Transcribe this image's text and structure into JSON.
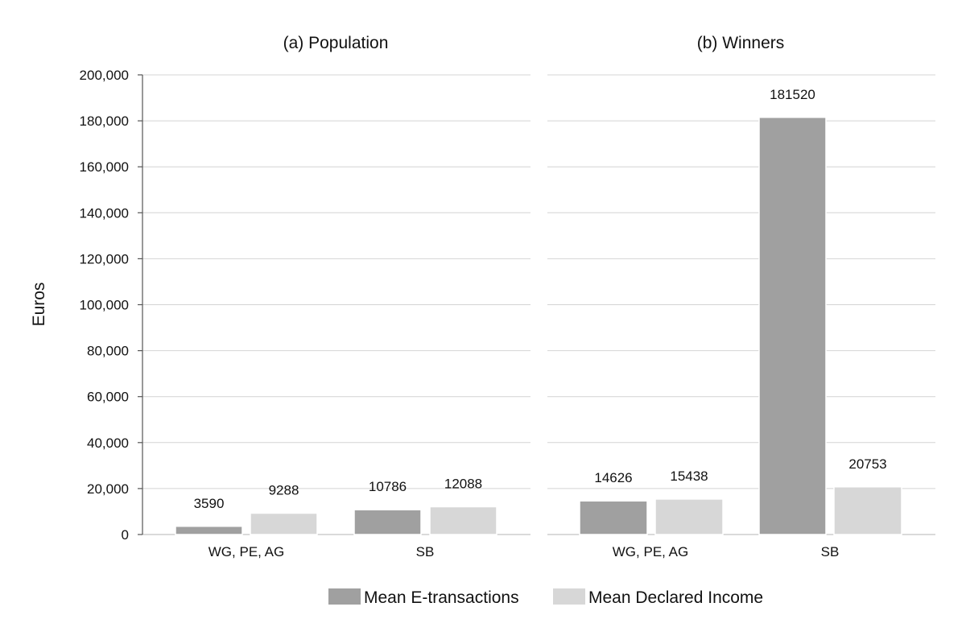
{
  "chart_data": {
    "type": "bar",
    "ylabel": "Euros",
    "ylim": [
      0,
      200000
    ],
    "yticks": [
      0,
      20000,
      40000,
      60000,
      80000,
      100000,
      120000,
      140000,
      160000,
      180000,
      200000
    ],
    "ytick_labels": [
      "0",
      "20,000",
      "40,000",
      "60,000",
      "80,000",
      "100,000",
      "120,000",
      "140,000",
      "160,000",
      "180,000",
      "200,000"
    ],
    "grid": true,
    "legend_position": "bottom",
    "series_info": [
      {
        "name": "Mean E-transactions",
        "color": "#a0a0a0"
      },
      {
        "name": "Mean Declared Income",
        "color": "#d7d7d7"
      }
    ],
    "panels": [
      {
        "title": "(a) Population",
        "categories": [
          "WG, PE, AG",
          "SB"
        ],
        "series": [
          {
            "name": "Mean E-transactions",
            "values": [
              3590,
              10786
            ],
            "labels": [
              "3590",
              "10786"
            ]
          },
          {
            "name": "Mean Declared Income",
            "values": [
              9288,
              12088
            ],
            "labels": [
              "9288",
              "12088"
            ]
          }
        ]
      },
      {
        "title": "(b) Winners",
        "categories": [
          "WG, PE, AG",
          "SB"
        ],
        "series": [
          {
            "name": "Mean E-transactions",
            "values": [
              14626,
              181520
            ],
            "labels": [
              "14626",
              "181520"
            ]
          },
          {
            "name": "Mean Declared Income",
            "values": [
              15438,
              20753
            ],
            "labels": [
              "15438",
              "20753"
            ]
          }
        ]
      }
    ]
  }
}
